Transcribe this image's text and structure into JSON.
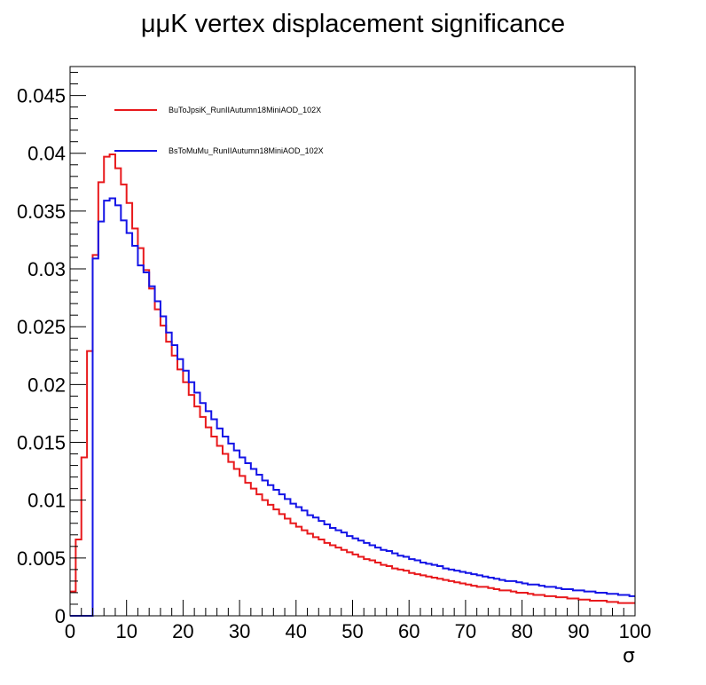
{
  "chart_data": {
    "type": "line",
    "step": true,
    "title": "μμK vertex displacement significance",
    "xlabel": "σ",
    "ylabel": "",
    "xlim": [
      0,
      100
    ],
    "ylim": [
      0,
      0.0475
    ],
    "grid": false,
    "legend_position": "top-left",
    "x_ticks": [
      0,
      10,
      20,
      30,
      40,
      50,
      60,
      70,
      80,
      90,
      100
    ],
    "x_tick_labels": [
      "0",
      "10",
      "20",
      "30",
      "40",
      "50",
      "60",
      "70",
      "80",
      "90",
      "100"
    ],
    "y_ticks": [
      0,
      0.005,
      0.01,
      0.015,
      0.02,
      0.025,
      0.03,
      0.035,
      0.04,
      0.045
    ],
    "y_tick_labels": [
      "0",
      "0.005",
      "0.01",
      "0.015",
      "0.02",
      "0.025",
      "0.03",
      "0.035",
      "0.04",
      "0.045"
    ],
    "bin_edges_start": 0,
    "bin_width": 1,
    "series": [
      {
        "name": "BuToJpsiK_RunIIAutumn18MiniAOD_102X",
        "color": "#e8191c",
        "values": [
          0.0021,
          0.0066,
          0.0137,
          0.0229,
          0.0312,
          0.0375,
          0.0397,
          0.0399,
          0.0387,
          0.0373,
          0.0357,
          0.0335,
          0.0318,
          0.0299,
          0.0283,
          0.0265,
          0.0251,
          0.0237,
          0.0225,
          0.0213,
          0.0202,
          0.0191,
          0.0181,
          0.0172,
          0.0163,
          0.0155,
          0.0147,
          0.014,
          0.0133,
          0.0127,
          0.0121,
          0.0115,
          0.011,
          0.0105,
          0.01,
          0.0096,
          0.0092,
          0.0088,
          0.0084,
          0.008,
          0.0077,
          0.0074,
          0.0071,
          0.0068,
          0.0066,
          0.0063,
          0.0061,
          0.0059,
          0.0057,
          0.0055,
          0.0053,
          0.0051,
          0.0049,
          0.0048,
          0.0046,
          0.0044,
          0.0043,
          0.0041,
          0.004,
          0.0039,
          0.0037,
          0.0036,
          0.0035,
          0.0034,
          0.0033,
          0.0032,
          0.0031,
          0.003,
          0.0029,
          0.0028,
          0.0027,
          0.0026,
          0.0025,
          0.0025,
          0.0024,
          0.0023,
          0.0022,
          0.0022,
          0.0021,
          0.002,
          0.002,
          0.0019,
          0.0018,
          0.0018,
          0.0017,
          0.0017,
          0.0016,
          0.0016,
          0.0015,
          0.0015,
          0.0014,
          0.0014,
          0.0013,
          0.0013,
          0.0013,
          0.0012,
          0.0012,
          0.0011,
          0.0011,
          0.0011
        ]
      },
      {
        "name": "BsToMuMu_RunIIAutumn18MiniAOD_102X",
        "color": "#1414e6",
        "values": [
          0,
          0,
          0,
          0,
          0.0309,
          0.0341,
          0.0359,
          0.0361,
          0.0355,
          0.0342,
          0.0331,
          0.032,
          0.0303,
          0.0297,
          0.0285,
          0.0272,
          0.0259,
          0.0245,
          0.0234,
          0.0222,
          0.0212,
          0.0202,
          0.0193,
          0.0184,
          0.0177,
          0.017,
          0.0162,
          0.0155,
          0.0149,
          0.0143,
          0.0137,
          0.0132,
          0.0127,
          0.0122,
          0.0117,
          0.0113,
          0.0109,
          0.0105,
          0.0101,
          0.0097,
          0.0094,
          0.0091,
          0.0087,
          0.0085,
          0.0082,
          0.0079,
          0.0076,
          0.0074,
          0.0072,
          0.0069,
          0.0067,
          0.0065,
          0.0063,
          0.0061,
          0.0059,
          0.0057,
          0.0056,
          0.0054,
          0.0052,
          0.0051,
          0.0049,
          0.0048,
          0.0046,
          0.0045,
          0.0044,
          0.0043,
          0.0041,
          0.004,
          0.0039,
          0.0038,
          0.0037,
          0.0036,
          0.0035,
          0.0034,
          0.0033,
          0.0032,
          0.0031,
          0.003,
          0.003,
          0.0029,
          0.0028,
          0.0027,
          0.0027,
          0.0026,
          0.0025,
          0.0025,
          0.0024,
          0.0023,
          0.0023,
          0.0022,
          0.0022,
          0.0021,
          0.0021,
          0.002,
          0.002,
          0.0019,
          0.0019,
          0.0018,
          0.0018,
          0.0017
        ]
      }
    ]
  }
}
